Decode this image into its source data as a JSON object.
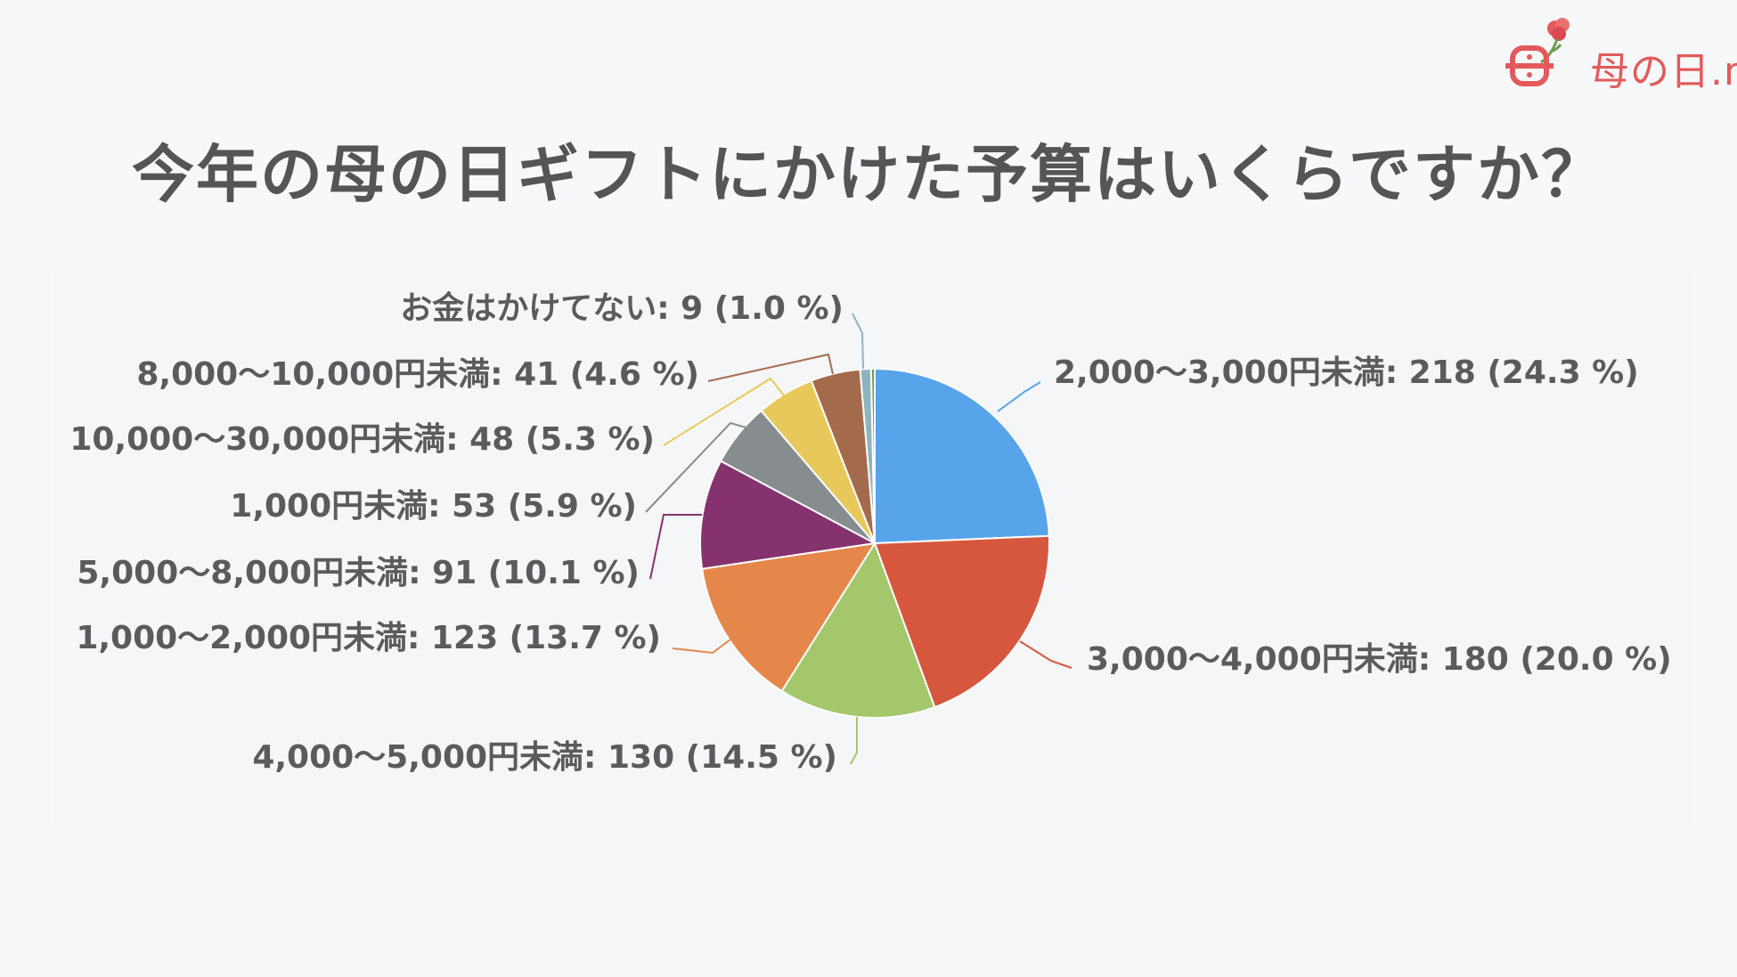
{
  "logo": {
    "text": "母の日.me",
    "brand_color": "#e35a5c"
  },
  "title": "今年の母の日ギフトにかけた予算はいくらですか？",
  "chart_data": {
    "type": "pie",
    "title": "今年の母の日ギフトにかけた予算はいくらですか？",
    "slices": [
      {
        "label": "2,000〜3,000円未満",
        "value": 218,
        "percent": 24.3,
        "color": "#58a4ea",
        "text": "2,000〜3,000円未満: 218 (24.3 %)"
      },
      {
        "label": "3,000〜4,000円未満",
        "value": 180,
        "percent": 20.0,
        "color": "#d6573e",
        "text": "3,000〜4,000円未満: 180 (20.0 %)"
      },
      {
        "label": "4,000〜5,000円未満",
        "value": 130,
        "percent": 14.5,
        "color": "#a3c76a",
        "text": "4,000〜5,000円未満: 130 (14.5 %)"
      },
      {
        "label": "1,000〜2,000円未満",
        "value": 123,
        "percent": 13.7,
        "color": "#e5874a",
        "text": "1,000〜2,000円未満: 123 (13.7 %)"
      },
      {
        "label": "5,000〜8,000円未満",
        "value": 91,
        "percent": 10.1,
        "color": "#85326e",
        "text": "5,000〜8,000円未満: 91 (10.1 %)"
      },
      {
        "label": "1,000円未満",
        "value": 53,
        "percent": 5.9,
        "color": "#878c8e",
        "text": "1,000円未満: 53 (5.9 %)"
      },
      {
        "label": "10,000〜30,000円未満",
        "value": 48,
        "percent": 5.3,
        "color": "#e9c85b",
        "text": "10,000〜30,000円未満: 48 (5.3 %)"
      },
      {
        "label": "8,000〜10,000円未満",
        "value": 41,
        "percent": 4.6,
        "color": "#a36b4c",
        "text": "8,000〜10,000円未満: 41 (4.6 %)"
      },
      {
        "label": "お金はかけてない",
        "value": 9,
        "percent": 1.0,
        "color": "#8fb4bd",
        "text": "お金はかけてない: 9 (1.0 %)"
      },
      {
        "label": "",
        "value": 3,
        "percent": 0.3,
        "color": "#6e9a52",
        "text": ""
      }
    ],
    "start_angle": "12 o'clock",
    "direction": "clockwise",
    "legend": "none (labels with leader lines)"
  }
}
